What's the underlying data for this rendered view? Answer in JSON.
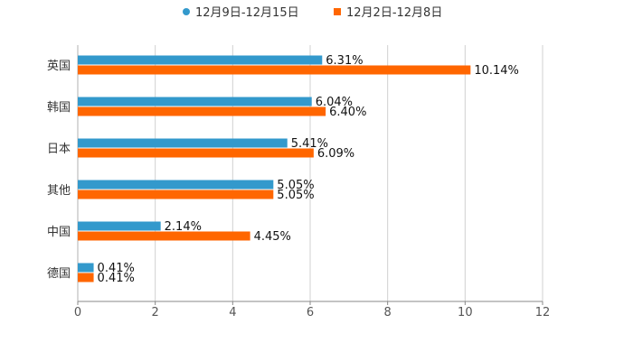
{
  "chart_data": {
    "type": "bar",
    "orientation": "horizontal",
    "categories": [
      "英国",
      "韩国",
      "日本",
      "其他",
      "中国",
      "德国"
    ],
    "series": [
      {
        "name": "12月9日-12月15日",
        "color": "#3399cc",
        "values": [
          6.31,
          6.04,
          5.41,
          5.05,
          2.14,
          0.41
        ],
        "labels": [
          "6.31%",
          "6.04%",
          "5.41%",
          "5.05%",
          "2.14%",
          "0.41%"
        ]
      },
      {
        "name": "12月2日-12月8日",
        "color": "#ff6600",
        "values": [
          10.14,
          6.4,
          6.09,
          5.05,
          4.45,
          0.41
        ],
        "labels": [
          "10.14%",
          "6.40%",
          "6.09%",
          "5.05%",
          "4.45%",
          "0.41%"
        ]
      }
    ],
    "xlim": [
      0,
      12
    ],
    "ticks": [
      0,
      2,
      4,
      6,
      8,
      10,
      12
    ],
    "tick_labels": [
      "0",
      "2",
      "4",
      "6",
      "8",
      "10",
      "12"
    ],
    "grid": true,
    "legend_position": "top-center"
  }
}
